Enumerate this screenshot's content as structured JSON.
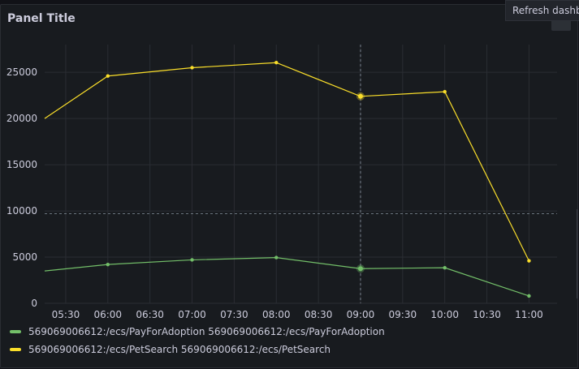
{
  "panel": {
    "title": "Panel Title"
  },
  "tooltip": {
    "text": "Refresh dashb"
  },
  "chart_data": {
    "type": "line",
    "x": [
      "05:15",
      "06:00",
      "07:00",
      "08:00",
      "09:00",
      "10:00",
      "11:00"
    ],
    "x_ticks": [
      "05:30",
      "06:00",
      "06:30",
      "07:00",
      "07:30",
      "08:00",
      "08:30",
      "09:00",
      "09:30",
      "10:00",
      "10:30",
      "11:00"
    ],
    "y_ticks": [
      0,
      5000,
      10000,
      15000,
      20000,
      25000
    ],
    "ylim": [
      0,
      28000
    ],
    "threshold": 9700,
    "hover_x": "09:00",
    "series": [
      {
        "name": "569069006612:/ecs/PayForAdoption 569069006612:/ecs/PayForAdoption",
        "color": "#73bf69",
        "values": [
          3500,
          4200,
          4700,
          4950,
          3750,
          3850,
          800
        ]
      },
      {
        "name": "569069006612:/ecs/PetSearch 569069006612:/ecs/PetSearch",
        "color": "#fade2a",
        "values": [
          20000,
          24600,
          25500,
          26050,
          22400,
          22900,
          4600
        ]
      }
    ]
  }
}
